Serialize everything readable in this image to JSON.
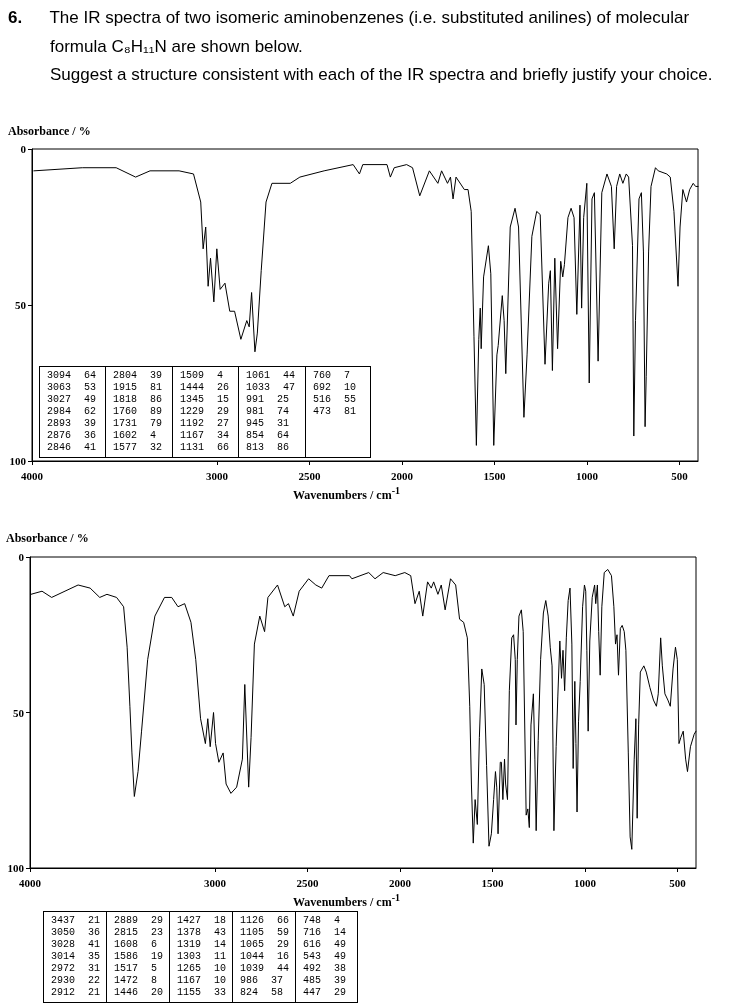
{
  "chart_data": [
    {
      "type": "line",
      "title": "6. The IR spectra of two isomeric aminobenzenes (i.e. substituted anilines) of molecular formula C₈H₁₁N are shown below.",
      "subtitle": "Suggest a structure consistent with each of the IR spectra and briefly justify your choice.",
      "xlabel": "Wavenumbers / cm$^{-1}$",
      "ylabel": "Absorbance / %",
      "x": [
        3990,
        3728,
        3545,
        3440,
        3362,
        3205,
        3127,
        3088,
        3075,
        3061,
        3048,
        3035,
        3017,
        3001,
        2983,
        2957,
        2931,
        2905,
        2871,
        2839,
        2826,
        2813,
        2795,
        2782,
        2761,
        2735,
        2703,
        2604,
        2552,
        2421,
        2264,
        2230,
        2212,
        2081,
        2063,
        2042,
        1975,
        1943,
        1904,
        1852,
        1806,
        1786,
        1754,
        1738,
        1724,
        1708,
        1663,
        1643,
        1626,
        1611,
        1598,
        1585,
        1577,
        1572,
        1559,
        1533,
        1520,
        1504,
        1487,
        1480,
        1458,
        1448,
        1439,
        1415,
        1389,
        1370,
        1341,
        1324,
        1298,
        1272,
        1253,
        1227,
        1207,
        1198,
        1187,
        1174,
        1159,
        1142,
        1131,
        1122,
        1103,
        1086,
        1070,
        1055,
        1038,
        1029,
        1018,
        1001,
        988,
        973,
        960,
        940,
        920,
        892,
        868,
        853,
        840,
        823,
        806,
        788,
        775,
        754,
        747,
        738,
        719,
        706,
        695,
        686,
        680,
        667,
        654,
        630,
        615,
        569,
        550,
        530,
        508,
        497,
        482,
        462,
        445,
        426,
        413,
        400
      ],
      "series": [
        {
          "color": "#000000",
          "values": [
            7,
            6,
            6,
            9,
            7,
            7,
            8,
            17,
            32,
            25,
            44,
            35,
            49,
            32,
            45,
            43,
            52,
            52,
            61,
            55,
            57,
            46,
            65,
            59,
            39,
            17,
            11,
            11,
            9,
            7,
            5,
            8,
            5,
            5,
            9,
            6,
            5,
            6,
            15,
            7,
            11,
            7,
            11,
            9,
            16,
            9,
            13,
            13,
            20,
            60,
            95,
            61,
            51,
            64,
            41,
            31,
            40,
            95,
            66,
            63,
            47,
            55,
            72,
            25,
            19,
            25,
            86,
            66,
            28,
            20,
            21,
            69,
            43,
            39,
            71,
            35,
            64,
            36,
            41,
            37,
            22,
            19,
            22,
            53,
            18,
            51,
            22,
            11,
            75,
            16,
            14,
            68,
            14,
            8,
            12,
            32,
            12,
            8,
            11,
            8,
            9,
            31,
            92,
            55,
            16,
            14,
            33,
            89,
            73,
            33,
            12,
            6,
            7,
            8,
            9,
            20,
            44,
            25,
            13,
            17,
            13,
            11,
            12,
            12
          ]
        }
      ],
      "xlim": [
        4000,
        400
      ],
      "xticks": [
        4000,
        3000,
        2500,
        2000,
        1500,
        1000,
        500
      ],
      "ylim": [
        100,
        0
      ],
      "yticks": [
        0,
        50,
        100
      ],
      "annotations": [
        "3094 64",
        "3063 53",
        "3027 49",
        "2984 62",
        "2893 39",
        "2876 36",
        "2846 41",
        "2804 39",
        "1915 81",
        "1818 86",
        "1760 89",
        "1731 79",
        "1602 4",
        "1577 32",
        "1509 4",
        "1444 26",
        "1345 15",
        "1229 29",
        "1192 27",
        "1167 34",
        "1131 66",
        "1061 44",
        "1033 47",
        "991 25",
        "981 74",
        "945 31",
        "854 64",
        "813 86",
        "760 7",
        "692 10",
        "516 55",
        "473 81"
      ]
    },
    {
      "type": "line",
      "xlabel": "Wavenumbers / cm$^{-1}$",
      "ylabel": "Absorbance / %",
      "x": [
        3995,
        3935,
        3883,
        3740,
        3675,
        3623,
        3584,
        3532,
        3494,
        3475,
        3460,
        3449,
        3436,
        3416,
        3397,
        3364,
        3325,
        3273,
        3234,
        3200,
        3164,
        3130,
        3104,
        3078,
        3052,
        3039,
        3026,
        3008,
        2997,
        2979,
        2956,
        2940,
        2914,
        2883,
        2852,
        2839,
        2818,
        2805,
        2787,
        2758,
        2732,
        2714,
        2662,
        2623,
        2603,
        2577,
        2545,
        2494,
        2455,
        2423,
        2384,
        2273,
        2260,
        2169,
        2135,
        2091,
        2026,
        1974,
        1942,
        1919,
        1896,
        1877,
        1851,
        1831,
        1818,
        1795,
        1777,
        1756,
        1727,
        1699,
        1678,
        1656,
        1636,
        1623,
        1614,
        1604,
        1594,
        1582,
        1571,
        1558,
        1545,
        1532,
        1519,
        1506,
        1494,
        1484,
        1477,
        1470,
        1458,
        1452,
        1444,
        1435,
        1429,
        1419,
        1409,
        1396,
        1386,
        1377,
        1373,
        1366,
        1357,
        1344,
        1334,
        1318,
        1309,
        1301,
        1292,
        1279,
        1271,
        1264,
        1253,
        1240,
        1225,
        1212,
        1199,
        1188,
        1178,
        1168,
        1156,
        1147,
        1136,
        1127,
        1119,
        1110,
        1101,
        1091,
        1081,
        1071,
        1064,
        1055,
        1049,
        1043,
        1035,
        1026,
        1013,
        1003,
        996,
        990,
        983,
        974,
        961,
        948,
        942,
        933,
        926,
        918,
        909,
        896,
        877,
        857,
        844,
        835,
        827,
        819,
        809,
        799,
        788,
        779,
        766,
        756,
        747,
        734,
        725,
        718,
        710,
        701,
        682,
        669,
        649,
        630,
        614,
        604,
        591,
        582,
        568,
        552,
        539,
        524,
        511,
        501,
        492,
        482,
        469,
        456,
        446,
        430,
        410,
        400
      ],
      "series": [
        {
          "color": "#000000",
          "values": [
            12,
            11,
            13,
            9,
            10,
            13,
            12,
            13,
            16,
            29,
            48,
            63,
            77,
            69,
            56,
            33,
            19,
            13,
            13,
            16,
            15,
            21,
            33,
            52,
            60,
            52,
            61,
            50,
            60,
            66,
            63,
            73,
            76,
            74,
            65,
            41,
            74,
            58,
            28,
            19,
            24,
            13,
            9,
            16,
            15,
            19,
            11,
            7,
            9,
            10,
            6,
            6,
            7,
            5,
            7,
            5,
            6,
            5,
            6,
            15,
            11,
            19,
            8,
            10,
            8,
            12,
            9,
            17,
            7,
            9,
            20,
            21,
            26,
            48,
            73,
            92,
            78,
            86,
            58,
            36,
            41,
            67,
            93,
            89,
            78,
            69,
            74,
            89,
            66,
            66,
            78,
            65,
            73,
            78,
            43,
            26,
            25,
            33,
            54,
            33,
            19,
            17,
            24,
            83,
            81,
            87,
            54,
            44,
            65,
            88,
            59,
            33,
            18,
            14,
            19,
            29,
            35,
            88,
            61,
            45,
            27,
            39,
            30,
            43,
            26,
            14,
            10,
            28,
            68,
            40,
            60,
            82,
            53,
            40,
            16,
            9,
            11,
            30,
            56,
            27,
            13,
            9,
            15,
            9,
            24,
            38,
            16,
            5,
            4,
            6,
            16,
            28,
            25,
            38,
            23,
            22,
            24,
            30,
            63,
            90,
            94,
            65,
            52,
            84,
            54,
            37,
            35,
            37,
            42,
            46,
            48,
            44,
            26,
            35,
            44,
            46,
            48,
            36,
            29,
            33,
            60,
            58,
            56,
            65,
            69,
            61,
            57,
            56
          ]
        }
      ],
      "xlim": [
        4000,
        400
      ],
      "xticks": [
        4000,
        3000,
        2500,
        2000,
        1500,
        1000,
        500
      ],
      "ylim": [
        100,
        0
      ],
      "yticks": [
        0,
        50,
        100
      ],
      "annotations": [
        "3437 21",
        "3050 36",
        "3028 41",
        "3014 35",
        "2972 31",
        "2930 22",
        "2912 21",
        "2889 29",
        "2815 23",
        "1608 6",
        "1586 19",
        "1517 5",
        "1472 8",
        "1446 20",
        "1427 18",
        "1378 43",
        "1319 14",
        "1303 11",
        "1265 10",
        "1167 10",
        "1155 33",
        "1126 66",
        "1105 59",
        "1065 29",
        "1044 16",
        "1039 44",
        "986 37",
        "824 58",
        "748 4",
        "716 14",
        "616 49",
        "543 49",
        "492 38",
        "485 39",
        "447 29"
      ]
    }
  ]
}
